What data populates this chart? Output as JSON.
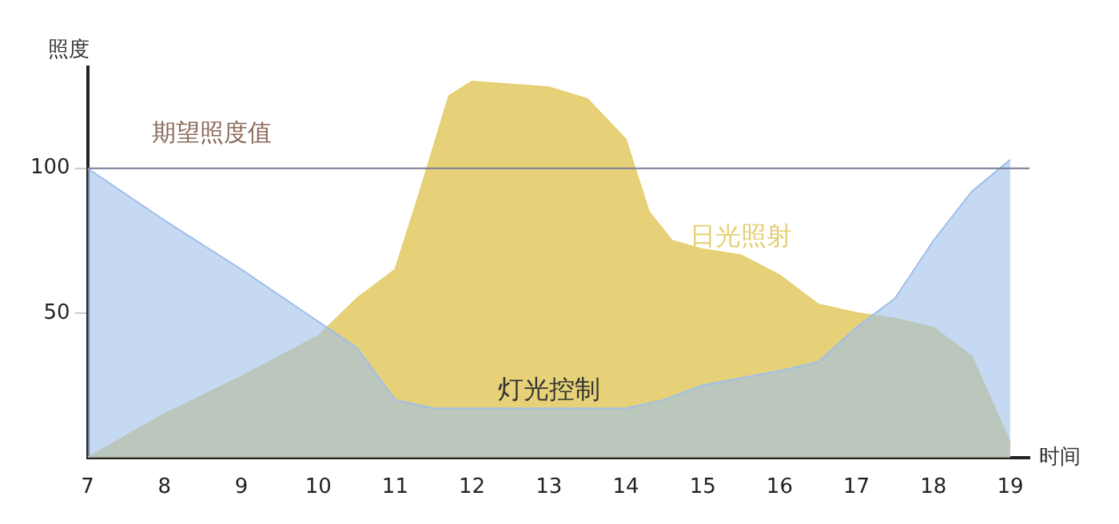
{
  "chart_data": {
    "type": "area",
    "xlabel": "时间",
    "ylabel": "照度",
    "xlim": [
      7,
      19.25
    ],
    "xticks": [
      7,
      8,
      9,
      10,
      11,
      12,
      13,
      14,
      15,
      16,
      17,
      18,
      19
    ],
    "ylim": [
      0,
      135
    ],
    "yticks": [
      50,
      100
    ],
    "grid": false,
    "legend": false,
    "marker": "none",
    "ref_lines": [
      {
        "axis": "y",
        "value": 100,
        "label": "期望照度值",
        "color": "#7a7a9a"
      }
    ],
    "series": [
      {
        "name": "日光照射",
        "color": "#e5cf72",
        "x": [
          7,
          8,
          9,
          10,
          10.5,
          11,
          11.3,
          11.7,
          12,
          13,
          13.5,
          14,
          14.3,
          14.6,
          15,
          15.5,
          16,
          16.5,
          17,
          17.5,
          18,
          18.5,
          19
        ],
        "values": [
          0,
          15,
          28,
          42,
          55,
          65,
          90,
          125,
          130,
          128,
          124,
          110,
          85,
          75,
          72,
          70,
          63,
          53,
          50,
          48,
          45,
          35,
          5
        ]
      },
      {
        "name": "灯光控制",
        "color": "#9fbfea",
        "x": [
          7,
          8,
          9,
          10,
          10.5,
          11,
          11.5,
          12,
          13,
          14,
          14.5,
          15,
          16,
          16.5,
          17,
          17.5,
          18,
          18.5,
          19
        ],
        "values": [
          100,
          82,
          65,
          47,
          38,
          20,
          17,
          17,
          17,
          17,
          20,
          25,
          30,
          33,
          45,
          55,
          75,
          92,
          103
        ]
      }
    ]
  }
}
